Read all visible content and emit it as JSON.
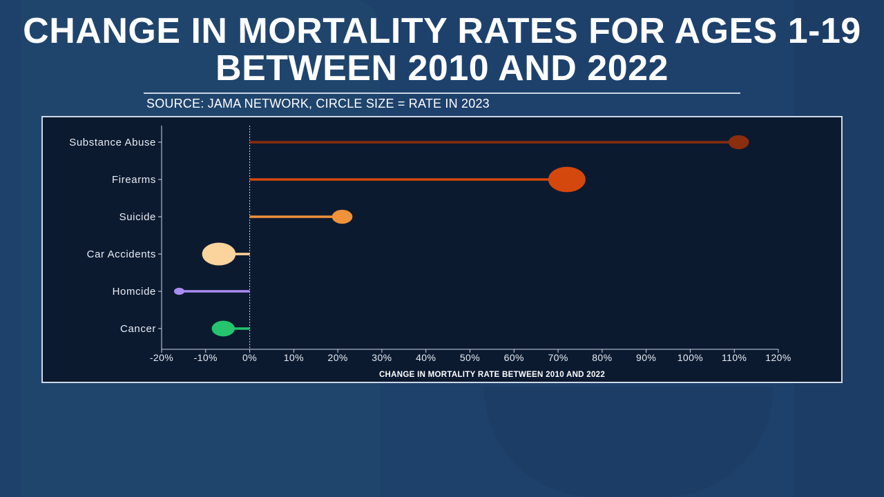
{
  "title": "CHANGE IN MORTALITY RATES FOR AGES 1-19 BETWEEN 2010 AND 2022",
  "subtitle": "SOURCE: JAMA NETWORK, CIRCLE SIZE = RATE IN 2023",
  "colors": {
    "background": "#1e416c",
    "chart_background": "#0c1a30"
  },
  "chart_data": {
    "type": "scatter",
    "subtype": "lollipop",
    "orientation": "horizontal",
    "xlabel": "CHANGE IN MORTALITY RATE BETWEEN 2010 AND 2022",
    "ylabel": "",
    "xlim": [
      -20,
      120
    ],
    "x_ticks": [
      -20,
      -10,
      0,
      10,
      20,
      30,
      40,
      50,
      60,
      70,
      80,
      90,
      100,
      110,
      120
    ],
    "x_tick_labels": [
      "-20%",
      "-10%",
      "0%",
      "10%",
      "20%",
      "30%",
      "40%",
      "50%",
      "60%",
      "70%",
      "80%",
      "90%",
      "100%",
      "110%",
      "120%"
    ],
    "reference_line": 0,
    "grid": false,
    "categories": [
      "Substance Abuse",
      "Firearms",
      "Suicide",
      "Car Accidents",
      "Homcide",
      "Cancer"
    ],
    "values": [
      111,
      72,
      21,
      -7,
      -16,
      -6
    ],
    "circle_size_relative": [
      0.55,
      1.0,
      0.55,
      0.9,
      0.28,
      0.62
    ],
    "colors": [
      "#8a2e0e",
      "#d4480d",
      "#f0923a",
      "#fbd39c",
      "#a98cf0",
      "#25c46d"
    ]
  }
}
